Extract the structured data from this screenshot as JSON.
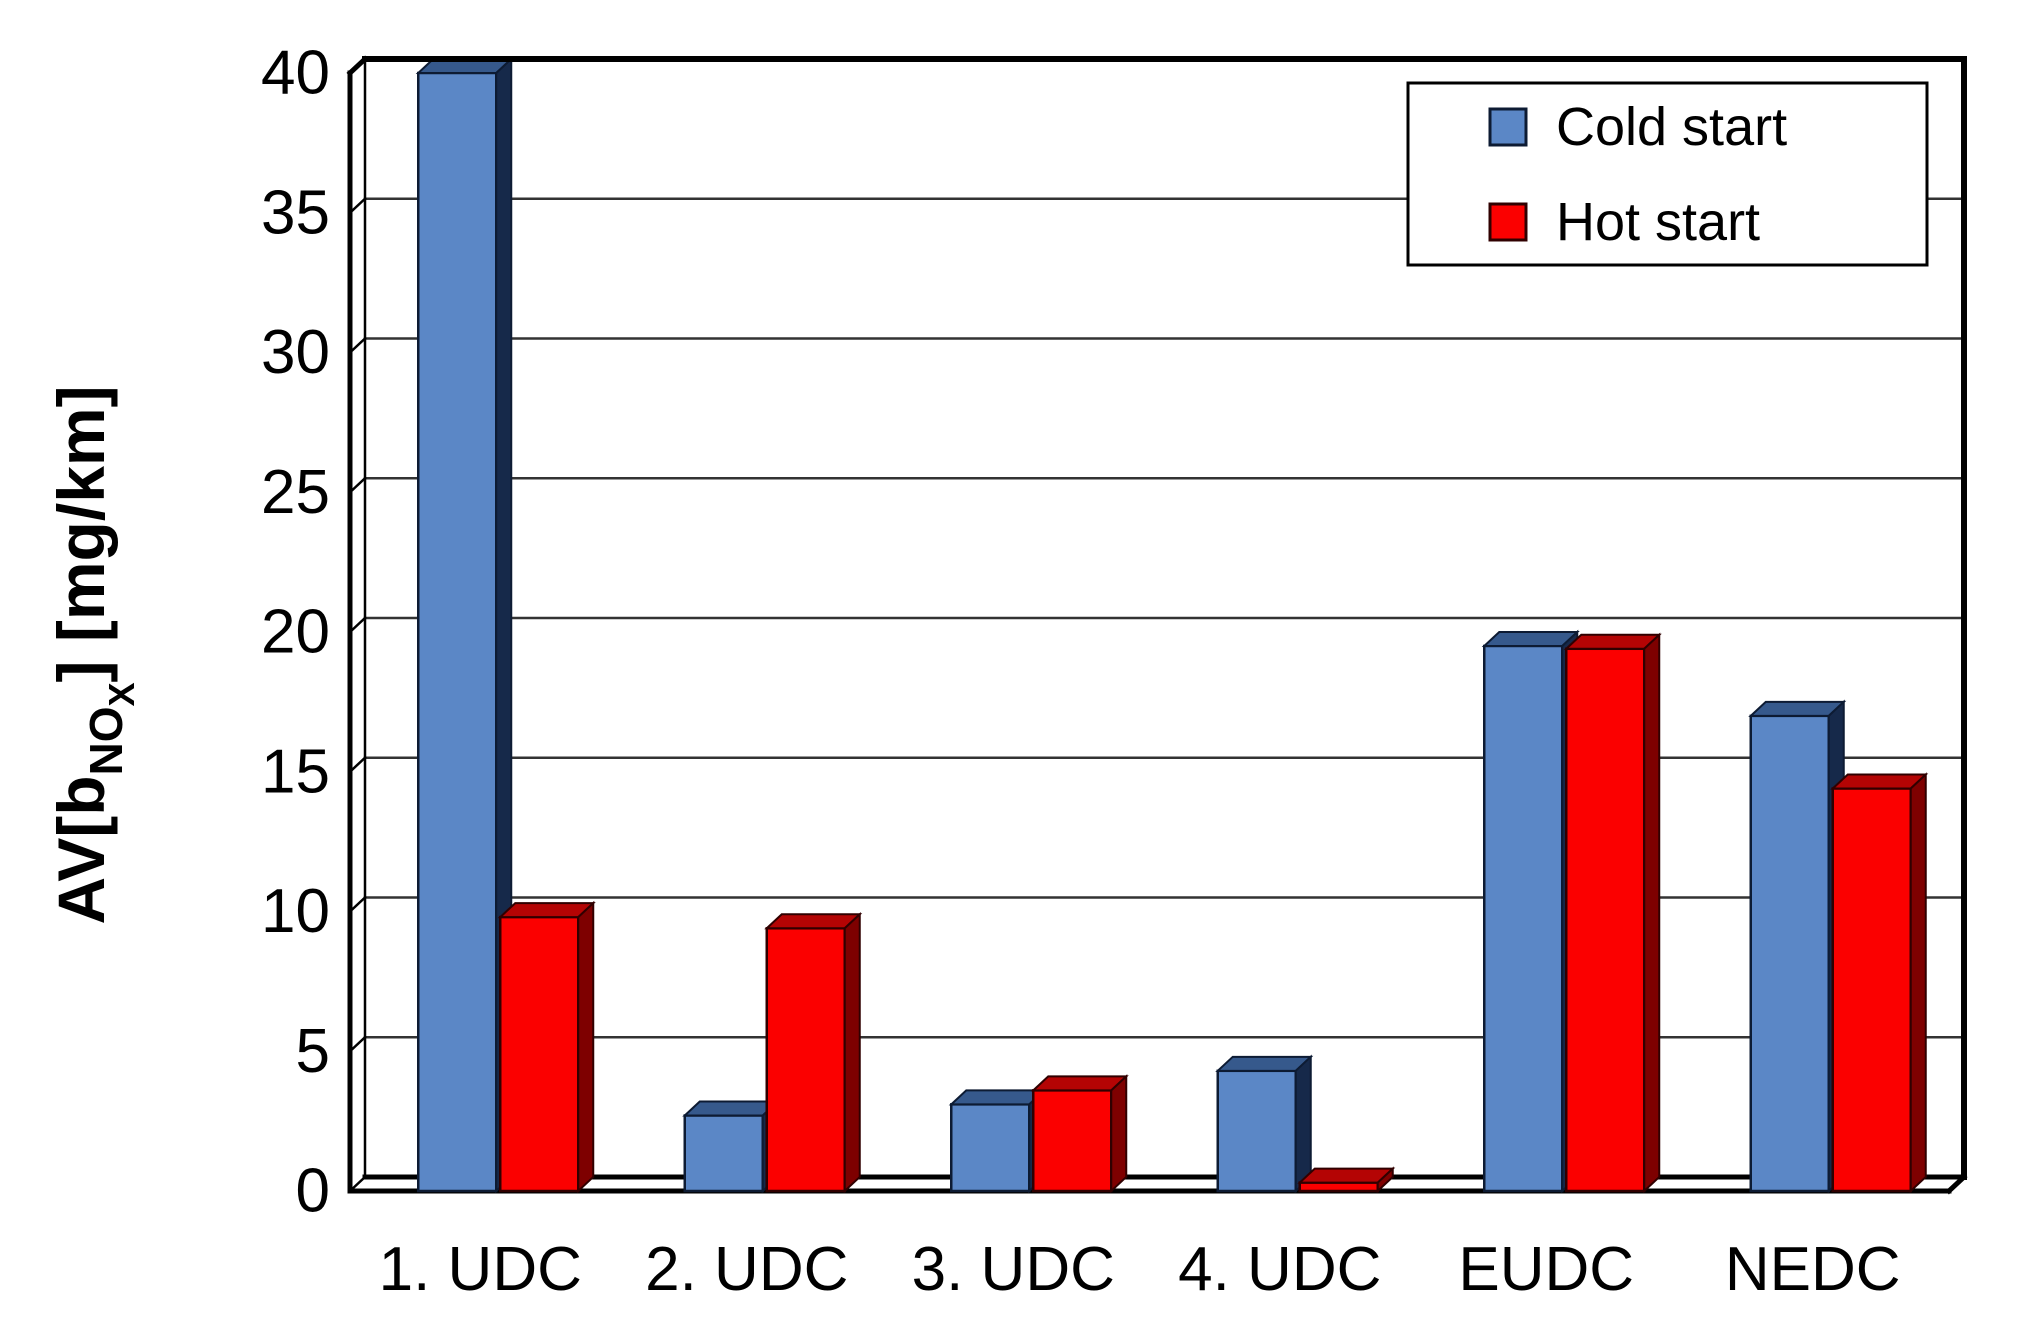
{
  "chart_data": {
    "type": "bar",
    "pseudo_3d": true,
    "title": "",
    "categories": [
      "1. UDC",
      "2. UDC",
      "3. UDC",
      "4. UDC",
      "EUDC",
      "NEDC"
    ],
    "series": [
      {
        "name": "Cold start",
        "values": [
          40,
          2.7,
          3.1,
          4.3,
          19.5,
          17.0
        ],
        "color": "#5B87C6",
        "top_color": "#36598C",
        "side_color": "#16294A",
        "outline": "#0D1B33"
      },
      {
        "name": "Hot start",
        "values": [
          9.8,
          9.4,
          3.6,
          0.3,
          19.4,
          14.4
        ],
        "color": "#FB0000",
        "top_color": "#B40404",
        "side_color": "#7E0000",
        "outline": "#300000"
      }
    ],
    "ylabel": "AV[bNOX] [mg/km]",
    "ylabel_parts": [
      {
        "text": "AV[b",
        "style": "normal"
      },
      {
        "text": "NO",
        "style": "sub"
      },
      {
        "text": "X",
        "style": "subsub"
      },
      {
        "text": "] [mg/km]",
        "style": "normal"
      }
    ],
    "xlabel": "",
    "ylim": [
      0,
      40
    ],
    "yticks": [
      0,
      5,
      10,
      15,
      20,
      25,
      30,
      35,
      40
    ],
    "grid": true,
    "grid_color": "#333333",
    "axis_color": "#000000",
    "text_color": "#000000",
    "background": "#FFFFFF",
    "legend_position": "top-right",
    "legend_border_color": "#000000",
    "legend_background": "#FFFFFF"
  }
}
